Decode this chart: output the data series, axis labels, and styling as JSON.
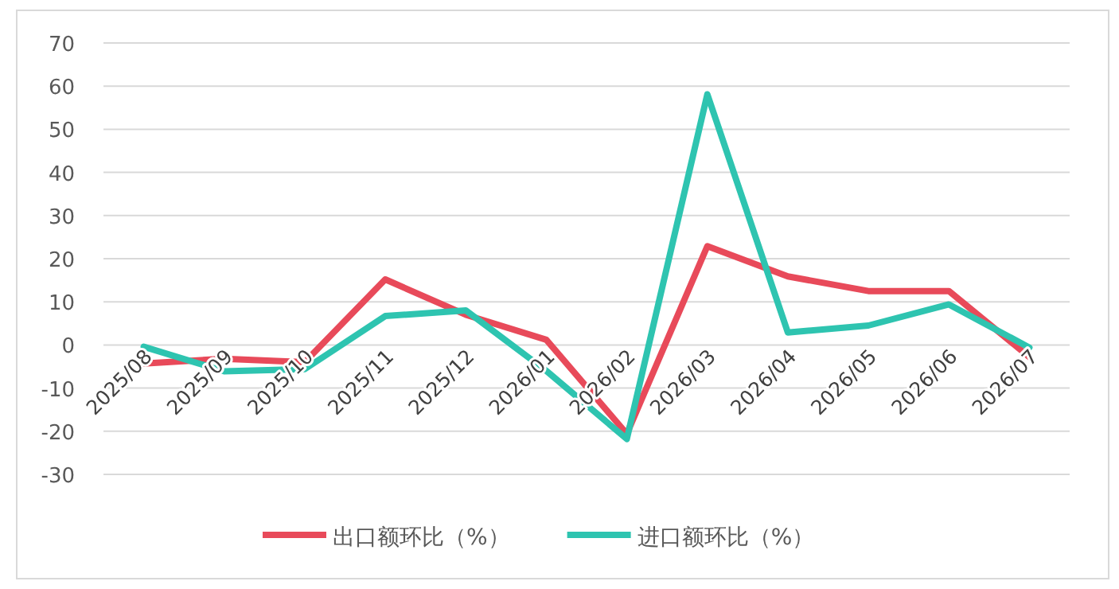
{
  "chart_data": {
    "type": "line",
    "categories": [
      "2025/08",
      "2025/09",
      "2025/10",
      "2025/11",
      "2025/12",
      "2026/01",
      "2026/02",
      "2026/03",
      "2026/04",
      "2026/05",
      "2026/06",
      "2026/07"
    ],
    "series": [
      {
        "name": "出口额环比（%）",
        "color": "#e84a5a",
        "values": [
          -4.3,
          -3.2,
          -4,
          15.2,
          7,
          1.2,
          -20.6,
          22.9,
          15.9,
          12.5,
          12.5,
          -2.8
        ]
      },
      {
        "name": "进口额环比（%）",
        "color": "#2ec4b0",
        "values": [
          -0.4,
          -6.1,
          -5.6,
          6.7,
          8,
          -6,
          -21.8,
          58.1,
          2.9,
          4.5,
          9.4,
          -0.6
        ]
      }
    ],
    "ylim": [
      -30,
      70
    ],
    "yticks": [
      -30,
      -20,
      -10,
      0,
      10,
      20,
      30,
      40,
      50,
      60,
      70
    ],
    "grid": "y",
    "legend": "bottom"
  }
}
